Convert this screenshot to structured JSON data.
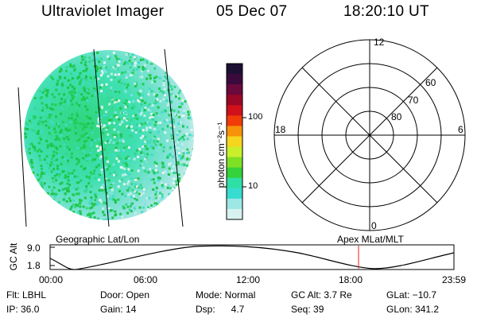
{
  "header": {
    "instrument": "Ultraviolet Imager",
    "date": "05 Dec 07",
    "time": "18:20:10 UT"
  },
  "colorbar": {
    "unit_label": "photon cm⁻²s⁻¹",
    "tick_100": "100",
    "tick_10": "10",
    "colors": [
      "#1c1033",
      "#3b0a3d",
      "#6a0a3c",
      "#9b0726",
      "#d0101a",
      "#f03c08",
      "#f7920a",
      "#f6d51e",
      "#c9ef2c",
      "#7ee025",
      "#34d23b",
      "#2ee0a6",
      "#37dcd0",
      "#9ee7e4",
      "#d8f2f0"
    ]
  },
  "polar": {
    "label_top": "12",
    "label_bottom": "0",
    "label_left": "18",
    "label_right": "6",
    "ring_labels": [
      "60",
      "70",
      "80"
    ]
  },
  "timeline": {
    "left_title": "Geographic Lat/Lon",
    "right_title": "Apex  MLat/MLT",
    "yaxis_label": "GC Alt",
    "y_max_label": "9.0",
    "y_min_label": "1.8",
    "x_labels": [
      "00:00",
      "06:00",
      "12:00",
      "18:00",
      "23:59"
    ],
    "marker_color": "#e02020"
  },
  "info": {
    "flt": "Flt: LBHL",
    "ip": "IP: 36.0",
    "door": "Door: Open",
    "gain": "Gain: 14",
    "mode": "Mode: Normal",
    "dsp": "Dsp:      4.7",
    "gcalt": "GC Alt: 3.7 Re",
    "seq": "Seq: 39",
    "glat": "GLat: −10.7",
    "glon": "GLon: 341.2"
  }
}
